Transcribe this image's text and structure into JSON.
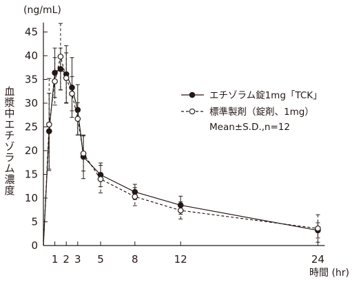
{
  "chart_data": {
    "type": "line",
    "y_unit_label": "(ng/mL)",
    "ylabel": "血漿中エチゾラム濃度",
    "x_unit_label": "時間 (hr)",
    "ylim": [
      0,
      47
    ],
    "y_ticks": [
      0,
      5,
      10,
      15,
      20,
      25,
      30,
      35,
      40,
      45
    ],
    "x_ticks": [
      1,
      2,
      3,
      5,
      8,
      12,
      24
    ],
    "grid": false,
    "legend_position": "right",
    "legend_note": "Mean±S.D.,n=12",
    "series": [
      {
        "name": "エチゾラム錠1mg「TCK」",
        "marker": "filled-circle",
        "line_style": "solid",
        "color": "#231815",
        "x": [
          0,
          0.5,
          1,
          1.5,
          2,
          2.5,
          3,
          3.5,
          5,
          8,
          12,
          24
        ],
        "y": [
          0,
          24.1,
          36.4,
          37.2,
          36.1,
          33.3,
          28.6,
          18.7,
          14.9,
          11.3,
          8.5,
          3.2
        ],
        "sd": [
          0,
          8.0,
          5.2,
          4.4,
          6.0,
          6.3,
          5.3,
          4.6,
          2.5,
          1.6,
          1.9,
          1.6
        ]
      },
      {
        "name": "標準製剤（錠剤、1mg）",
        "marker": "open-circle",
        "line_style": "dashed",
        "color": "#231815",
        "x": [
          0,
          0.5,
          1,
          1.5,
          2,
          2.5,
          3,
          3.5,
          5,
          8,
          12,
          24
        ],
        "y": [
          0,
          25.5,
          34.6,
          39.8,
          35.3,
          32.0,
          26.7,
          19.4,
          14.0,
          10.3,
          7.4,
          3.6
        ],
        "sd": [
          0,
          9.7,
          5.0,
          7.0,
          5.3,
          3.6,
          3.4,
          3.7,
          2.9,
          1.9,
          1.8,
          2.9
        ]
      }
    ]
  }
}
